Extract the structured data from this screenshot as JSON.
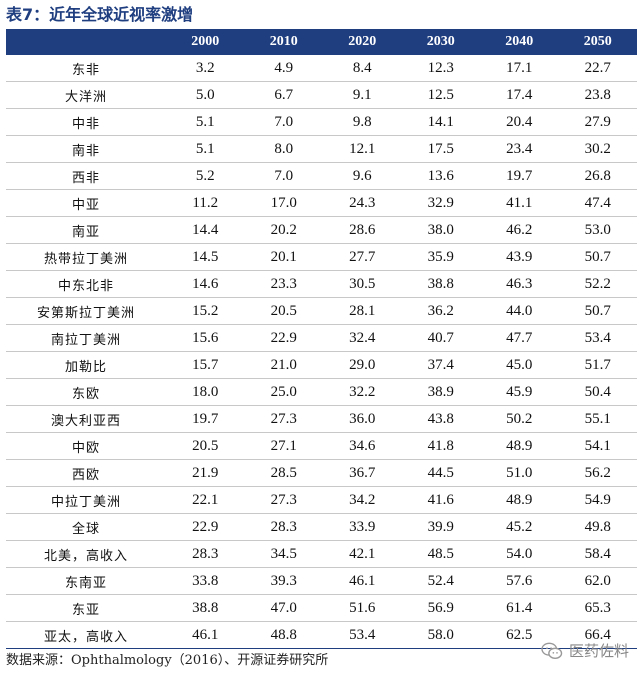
{
  "title": "表7：近年全球近视率激增",
  "table": {
    "headers": [
      "",
      "2000",
      "2010",
      "2020",
      "2030",
      "2040",
      "2050"
    ],
    "rows": [
      {
        "region": "东非",
        "v": [
          "3.2",
          "4.9",
          "8.4",
          "12.3",
          "17.1",
          "22.7"
        ]
      },
      {
        "region": "大洋洲",
        "v": [
          "5.0",
          "6.7",
          "9.1",
          "12.5",
          "17.4",
          "23.8"
        ]
      },
      {
        "region": "中非",
        "v": [
          "5.1",
          "7.0",
          "9.8",
          "14.1",
          "20.4",
          "27.9"
        ]
      },
      {
        "region": "南非",
        "v": [
          "5.1",
          "8.0",
          "12.1",
          "17.5",
          "23.4",
          "30.2"
        ]
      },
      {
        "region": "西非",
        "v": [
          "5.2",
          "7.0",
          "9.6",
          "13.6",
          "19.7",
          "26.8"
        ]
      },
      {
        "region": "中亚",
        "v": [
          "11.2",
          "17.0",
          "24.3",
          "32.9",
          "41.1",
          "47.4"
        ]
      },
      {
        "region": "南亚",
        "v": [
          "14.4",
          "20.2",
          "28.6",
          "38.0",
          "46.2",
          "53.0"
        ]
      },
      {
        "region": "热带拉丁美洲",
        "v": [
          "14.5",
          "20.1",
          "27.7",
          "35.9",
          "43.9",
          "50.7"
        ]
      },
      {
        "region": "中东北非",
        "v": [
          "14.6",
          "23.3",
          "30.5",
          "38.8",
          "46.3",
          "52.2"
        ]
      },
      {
        "region": "安第斯拉丁美洲",
        "v": [
          "15.2",
          "20.5",
          "28.1",
          "36.2",
          "44.0",
          "50.7"
        ]
      },
      {
        "region": "南拉丁美洲",
        "v": [
          "15.6",
          "22.9",
          "32.4",
          "40.7",
          "47.7",
          "53.4"
        ]
      },
      {
        "region": "加勒比",
        "v": [
          "15.7",
          "21.0",
          "29.0",
          "37.4",
          "45.0",
          "51.7"
        ]
      },
      {
        "region": "东欧",
        "v": [
          "18.0",
          "25.0",
          "32.2",
          "38.9",
          "45.9",
          "50.4"
        ]
      },
      {
        "region": "澳大利亚西",
        "v": [
          "19.7",
          "27.3",
          "36.0",
          "43.8",
          "50.2",
          "55.1"
        ]
      },
      {
        "region": "中欧",
        "v": [
          "20.5",
          "27.1",
          "34.6",
          "41.8",
          "48.9",
          "54.1"
        ]
      },
      {
        "region": "西欧",
        "v": [
          "21.9",
          "28.5",
          "36.7",
          "44.5",
          "51.0",
          "56.2"
        ]
      },
      {
        "region": "中拉丁美洲",
        "v": [
          "22.1",
          "27.3",
          "34.2",
          "41.6",
          "48.9",
          "54.9"
        ]
      },
      {
        "region": "全球",
        "v": [
          "22.9",
          "28.3",
          "33.9",
          "39.9",
          "45.2",
          "49.8"
        ]
      },
      {
        "region": "北美，高收入",
        "v": [
          "28.3",
          "34.5",
          "42.1",
          "48.5",
          "54.0",
          "58.4"
        ]
      },
      {
        "region": "东南亚",
        "v": [
          "33.8",
          "39.3",
          "46.1",
          "52.4",
          "57.6",
          "62.0"
        ]
      },
      {
        "region": "东亚",
        "v": [
          "38.8",
          "47.0",
          "51.6",
          "56.9",
          "61.4",
          "65.3"
        ]
      },
      {
        "region": "亚太，高收入",
        "v": [
          "46.1",
          "48.8",
          "53.4",
          "58.0",
          "62.5",
          "66.4"
        ]
      }
    ]
  },
  "source": "数据来源：Ophthalmology（2016）、开源证券研究所",
  "watermark": {
    "label": "医药佐料",
    "icon": "wechat-icon"
  }
}
